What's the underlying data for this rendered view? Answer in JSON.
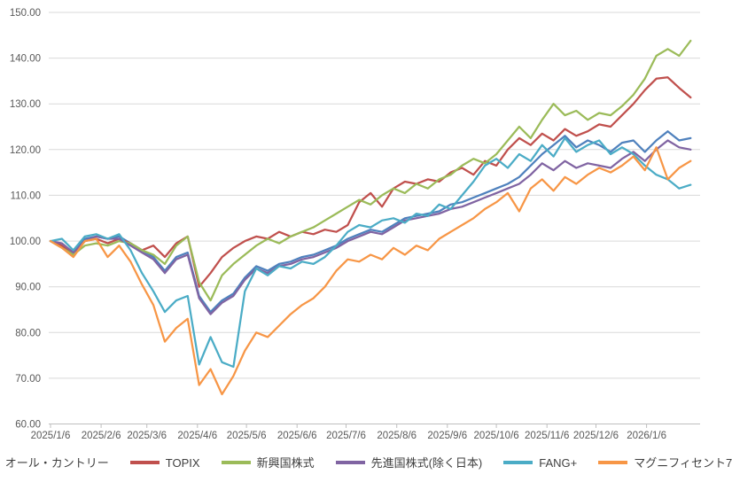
{
  "chart_data": {
    "type": "line",
    "title": "",
    "xlabel": "",
    "ylabel": "",
    "grid": true,
    "legend_position": "bottom",
    "y_axis": {
      "min": 60,
      "max": 150,
      "step": 10,
      "tick_labels": [
        "150.00",
        "140.00",
        "130.00",
        "120.00",
        "110.00",
        "100.00",
        "90.00",
        "80.00",
        "70.00",
        "60.00"
      ]
    },
    "x_axis": {
      "tick_labels": [
        "2025/1/6",
        "2025/2/6",
        "2025/3/6",
        "2025/4/6",
        "2025/5/6",
        "2025/6/6",
        "2025/7/6",
        "2025/8/6",
        "2025/9/6",
        "2025/10/6",
        "2025/11/6",
        "2025/12/6",
        "2026/1/6"
      ]
    },
    "x": [
      "2025/1/6",
      "2025/1/13",
      "2025/1/20",
      "2025/1/27",
      "2025/2/3",
      "2025/2/10",
      "2025/2/17",
      "2025/2/24",
      "2025/3/3",
      "2025/3/10",
      "2025/3/17",
      "2025/3/24",
      "2025/3/31",
      "2025/4/7",
      "2025/4/14",
      "2025/4/21",
      "2025/4/28",
      "2025/5/5",
      "2025/5/12",
      "2025/5/19",
      "2025/5/26",
      "2025/6/2",
      "2025/6/9",
      "2025/6/16",
      "2025/6/23",
      "2025/6/30",
      "2025/7/7",
      "2025/7/14",
      "2025/7/21",
      "2025/7/28",
      "2025/8/4",
      "2025/8/11",
      "2025/8/18",
      "2025/8/25",
      "2025/9/1",
      "2025/9/8",
      "2025/9/15",
      "2025/9/22",
      "2025/9/29",
      "2025/10/6",
      "2025/10/13",
      "2025/10/20",
      "2025/10/27",
      "2025/11/3",
      "2025/11/10",
      "2025/11/17",
      "2025/11/24",
      "2025/12/1",
      "2025/12/8",
      "2025/12/15",
      "2025/12/22",
      "2025/12/29",
      "2026/1/5",
      "2026/1/12",
      "2026/1/19",
      "2026/1/26",
      "2026/2/2"
    ],
    "series": [
      {
        "name": "オール・カントリー",
        "color": "#4F81BD",
        "values": [
          100,
          99,
          97.5,
          100.5,
          101,
          100.5,
          101,
          99.5,
          98,
          96.5,
          93.5,
          96.5,
          97.5,
          88,
          84.5,
          87,
          88.5,
          92,
          94.5,
          93.5,
          95,
          95.5,
          96.5,
          97,
          98,
          99,
          100.5,
          101.5,
          102.5,
          102,
          103.5,
          105,
          105.5,
          106,
          106.5,
          108,
          108.5,
          109.5,
          110.5,
          111.5,
          112.5,
          114,
          116.5,
          119,
          121,
          123,
          120.5,
          122,
          121,
          119.5,
          121.5,
          122,
          119.5,
          122,
          124,
          122,
          122.5
        ]
      },
      {
        "name": "TOPIX",
        "color": "#C0504D",
        "values": [
          100,
          99,
          97,
          100,
          100.5,
          99.5,
          100.5,
          99.5,
          98,
          99,
          96.5,
          99.5,
          101,
          90,
          93,
          96.5,
          98.5,
          100,
          101,
          100.5,
          102,
          101,
          102,
          101.5,
          102.5,
          102,
          103.5,
          108.5,
          110.5,
          107.5,
          111.5,
          113,
          112.5,
          113.5,
          113,
          115,
          116,
          114.5,
          117.5,
          116.5,
          120,
          122.5,
          121,
          123.5,
          122,
          124.5,
          123,
          124,
          125.5,
          125,
          127.5,
          130,
          133,
          135.5,
          135.8,
          133.5,
          131.4
        ]
      },
      {
        "name": "新興国株式",
        "color": "#9BBB59",
        "values": [
          100,
          98.5,
          97,
          99,
          99.5,
          99,
          100,
          99.5,
          98,
          97,
          95,
          99,
          101,
          91,
          87,
          92.5,
          95,
          97,
          99,
          100.5,
          99.5,
          101,
          102,
          103,
          104.5,
          106,
          107.5,
          109,
          108,
          110,
          111.5,
          110.5,
          112.5,
          111.5,
          113.5,
          114.5,
          116.5,
          118,
          117,
          119,
          122,
          125,
          122.5,
          126.5,
          130,
          127.5,
          128.5,
          126.5,
          128,
          127.5,
          129.5,
          132,
          135.5,
          140.5,
          142,
          140.5,
          143.8
        ]
      },
      {
        "name": "先進国株式(除く日本)",
        "color": "#8064A2",
        "values": [
          100,
          99.5,
          97.5,
          100,
          101,
          100.5,
          100.5,
          99,
          97.5,
          96,
          93,
          96,
          97,
          87.5,
          84,
          86.5,
          88,
          91.5,
          94,
          93,
          94.5,
          95,
          96,
          96.5,
          97.5,
          98.5,
          100,
          101,
          102,
          101.5,
          103,
          104.5,
          105,
          105.5,
          106,
          107,
          107.5,
          108.5,
          109.5,
          110.5,
          111.5,
          112.5,
          114.5,
          117,
          115.5,
          117.5,
          116,
          117,
          116.5,
          116,
          118,
          119.5,
          117.5,
          120,
          122,
          120.5,
          120
        ]
      },
      {
        "name": "FANG+",
        "color": "#4BACC6",
        "values": [
          100,
          100.5,
          98,
          101,
          101.5,
          100.5,
          101.5,
          98,
          93,
          89,
          84.5,
          87,
          88,
          73,
          79,
          73.5,
          72.5,
          89,
          94,
          92.5,
          94.5,
          94,
          95.5,
          95,
          96.5,
          99,
          102,
          103.5,
          103,
          104.5,
          105,
          104,
          106,
          105.5,
          108,
          107,
          110,
          113,
          116.5,
          118,
          116,
          119,
          117.5,
          121,
          118.5,
          122.5,
          119.5,
          121,
          122,
          119,
          120.5,
          119,
          116.5,
          114.5,
          113.5,
          111.5,
          112.3
        ]
      },
      {
        "name": "マグニフィセント7",
        "color": "#F79646",
        "values": [
          100,
          98.5,
          96.5,
          100,
          100.5,
          96.5,
          99,
          95.5,
          90.5,
          86,
          78,
          81,
          83,
          68.5,
          72,
          66.5,
          70.5,
          76,
          80,
          79,
          81.5,
          84,
          86,
          87.5,
          90,
          93.5,
          96,
          95.5,
          97,
          96,
          98.5,
          97,
          99,
          98,
          100.5,
          102,
          103.5,
          105,
          107,
          108.5,
          110.5,
          106.5,
          111.5,
          113.5,
          111,
          114,
          112.5,
          114.5,
          116,
          115,
          116.5,
          118.5,
          115.5,
          120.5,
          113.5,
          116,
          117.5
        ]
      }
    ],
    "style": {
      "gridline_color": "#D9D9D9",
      "axis_color": "#BFBFBF",
      "tick_text_color": "#595959",
      "legend_text_color": "#3F3F3F",
      "background": "#FFFFFF",
      "line_width": 2.25
    }
  }
}
